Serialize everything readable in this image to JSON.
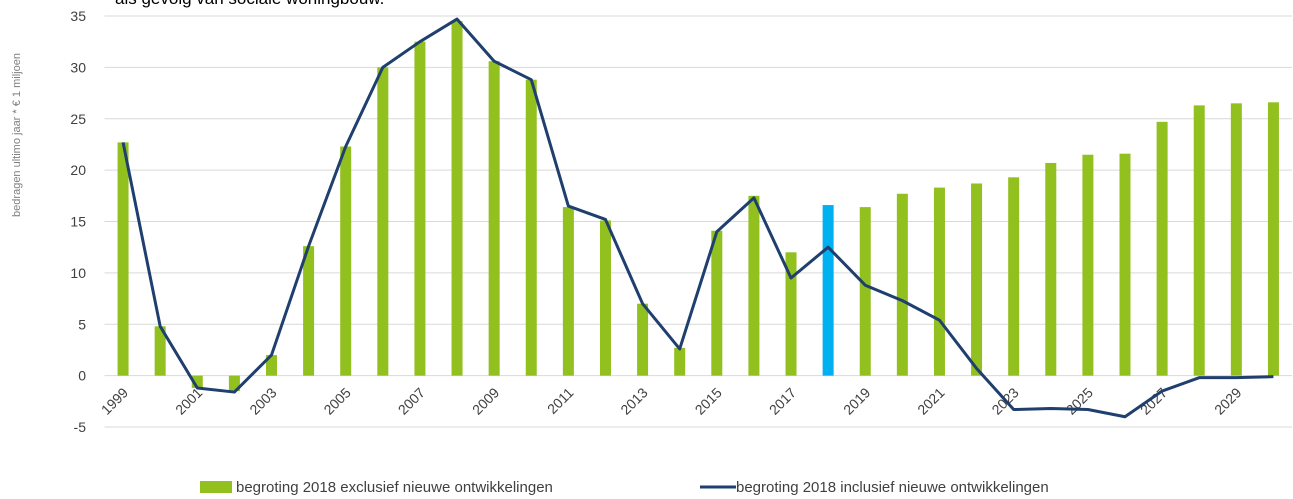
{
  "chart_data": {
    "type": "bar_line",
    "title": "als gevolg van sociale woningbouw.",
    "y_label": "bedragen ultimo jaar * € 1 miljoen",
    "categories": [
      "1999",
      null,
      "2001",
      null,
      "2003",
      null,
      "2005",
      null,
      "2007",
      null,
      "2009",
      null,
      "2011",
      null,
      "2013",
      null,
      "2015",
      null,
      "2017",
      null,
      "2019",
      null,
      "2021",
      null,
      "2023",
      null,
      "2025",
      null,
      "2027",
      null,
      "2029",
      null
    ],
    "series": [
      {
        "name": "begroting 2018 exclusief nieuwe ontwikkelingen",
        "kind": "bar",
        "color": "#92c01f",
        "point_colors": [
          null,
          null,
          null,
          null,
          null,
          null,
          null,
          null,
          null,
          null,
          null,
          null,
          null,
          null,
          null,
          null,
          null,
          null,
          null,
          "#00b0f0",
          null,
          null,
          null,
          null,
          null,
          null,
          null,
          null,
          null,
          null,
          null,
          null
        ],
        "values": [
          22.7,
          4.8,
          -1.2,
          -1.5,
          2.0,
          12.6,
          22.3,
          30.0,
          32.5,
          34.5,
          30.6,
          28.8,
          16.4,
          15.1,
          7.0,
          2.7,
          14.1,
          17.5,
          12.0,
          16.6,
          16.4,
          17.7,
          18.3,
          18.7,
          19.3,
          20.7,
          21.5,
          21.6,
          24.7,
          26.3,
          26.5,
          26.6
        ]
      },
      {
        "name": "begroting 2018 inclusief nieuwe ontwikkelingen",
        "kind": "line",
        "color": "#1f3f6e",
        "values": [
          22.7,
          4.8,
          -1.2,
          -1.6,
          2.0,
          12.6,
          22.3,
          30.0,
          32.5,
          34.7,
          30.6,
          28.8,
          16.5,
          15.2,
          7.0,
          2.6,
          14.0,
          17.3,
          9.5,
          12.5,
          8.8,
          7.3,
          5.4,
          0.7,
          -3.3,
          -3.2,
          -3.3,
          -4.0,
          -1.5,
          -0.2,
          -0.2,
          -0.1
        ]
      }
    ],
    "ylim": [
      -5,
      35
    ],
    "yticks": [
      -5,
      0,
      5,
      10,
      15,
      20,
      25,
      30,
      35
    ],
    "grid": true
  }
}
